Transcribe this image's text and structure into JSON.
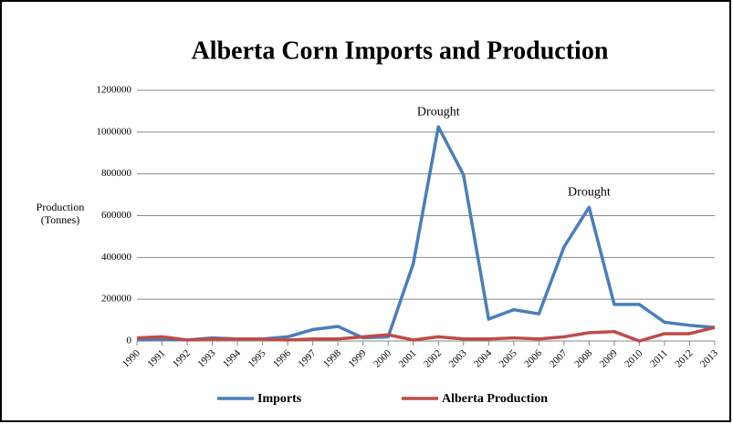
{
  "chart_data": {
    "type": "line",
    "title": "Alberta Corn Imports and Production",
    "ylabel": [
      "Production",
      "(Tonnes)"
    ],
    "categories": [
      "1990",
      "1991",
      "1992",
      "1993",
      "1994",
      "1995",
      "1996",
      "1997",
      "1998",
      "1999",
      "2000",
      "2001",
      "2002",
      "2003",
      "2004",
      "2005",
      "2006",
      "2007",
      "2008",
      "2009",
      "2010",
      "2011",
      "2012",
      "2013"
    ],
    "series": [
      {
        "name": "Imports",
        "color": "#4a7ebb",
        "values": [
          5000,
          10000,
          5000,
          15000,
          10000,
          10000,
          20000,
          55000,
          70000,
          15000,
          20000,
          370000,
          1025000,
          795000,
          105000,
          150000,
          130000,
          450000,
          640000,
          175000,
          175000,
          90000,
          75000,
          65000
        ]
      },
      {
        "name": "Alberta Production",
        "color": "#be4b48",
        "values": [
          15000,
          20000,
          5000,
          10000,
          10000,
          10000,
          5000,
          10000,
          10000,
          20000,
          30000,
          5000,
          20000,
          10000,
          10000,
          15000,
          10000,
          20000,
          40000,
          45000,
          0,
          35000,
          35000,
          65000
        ]
      }
    ],
    "annotations": [
      {
        "text": "Drought",
        "category": "2002"
      },
      {
        "text": "Drought",
        "category": "2008"
      }
    ],
    "ylim": [
      0,
      1200000
    ],
    "yticks": [
      0,
      200000,
      400000,
      600000,
      800000,
      1000000,
      1200000
    ],
    "grid": true,
    "legend": "bottom"
  }
}
